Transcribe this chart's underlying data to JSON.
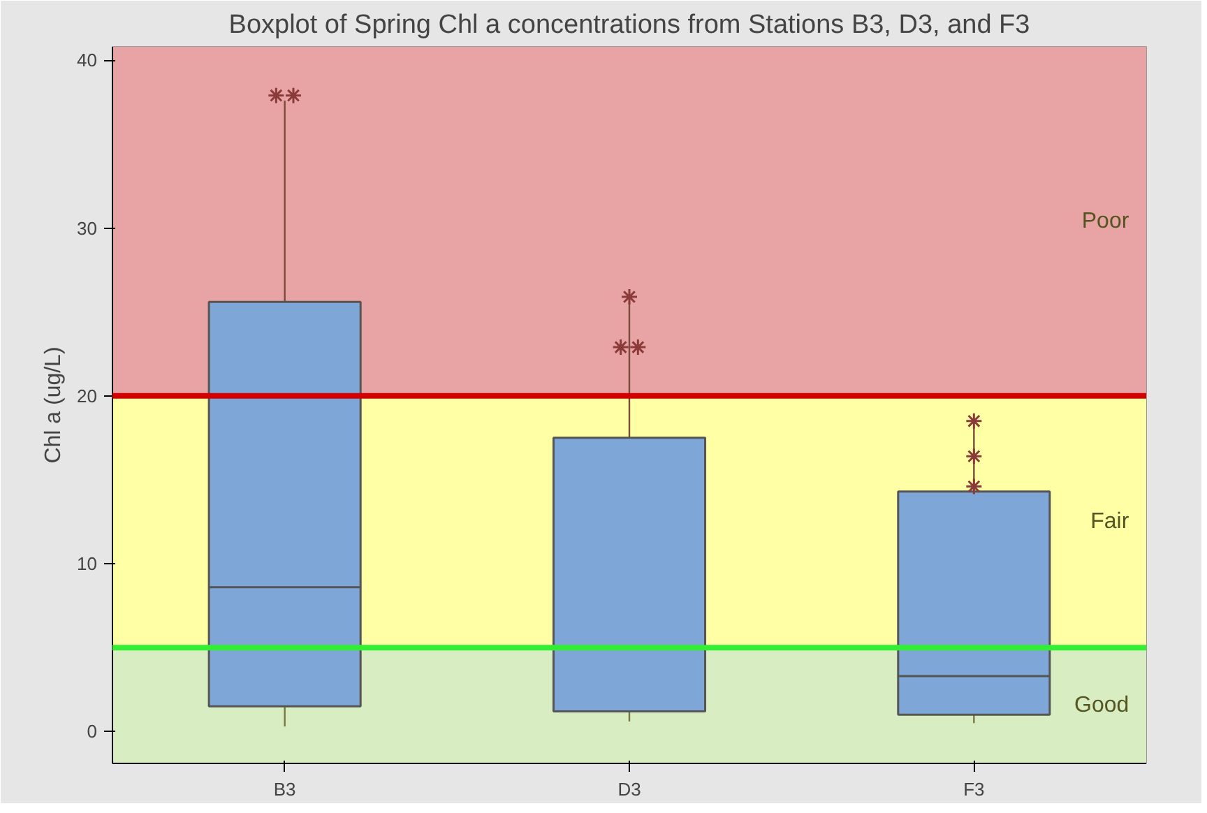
{
  "chart_data": {
    "type": "box",
    "title": "Boxplot of Spring Chl a concentrations from Stations B3, D3, and F3",
    "ylabel": "Chl a (ug/L)",
    "categories": [
      "B3",
      "D3",
      "F3"
    ],
    "series": [
      {
        "color": "#7ea7d8",
        "boxes": [
          {
            "low": 0.3,
            "q1": 1.5,
            "median": 8.6,
            "q3": 25.6,
            "high": 37.6,
            "outliers": [
              37.9,
              37.9
            ]
          },
          {
            "low": 0.6,
            "q1": 1.2,
            "median": 4.9,
            "q3": 17.5,
            "high": 25.6,
            "outliers": [
              22.9,
              22.9,
              25.9
            ]
          },
          {
            "low": 0.5,
            "q1": 1.0,
            "median": 3.3,
            "q3": 14.3,
            "high": 18.2,
            "outliers": [
              14.6,
              16.4,
              18.5
            ]
          }
        ]
      }
    ],
    "ylim": [
      -1.9,
      40.8
    ],
    "yticks": [
      0,
      10,
      20,
      30,
      40
    ],
    "bands": [
      {
        "axis": "y",
        "from": 20,
        "to": 40.8,
        "label": "Poor",
        "color": "#e8a4a4"
      },
      {
        "axis": "y",
        "from": 5,
        "to": 20,
        "label": "Fair",
        "color": "#ffffa6"
      },
      {
        "axis": "y",
        "from": -1.9,
        "to": 5,
        "label": "Good",
        "color": "#d9edc3"
      }
    ],
    "ref_lines": [
      {
        "axis": "y",
        "value": 20,
        "color": "#d40000"
      },
      {
        "axis": "y",
        "value": 5,
        "color": "#33ee33"
      }
    ]
  }
}
